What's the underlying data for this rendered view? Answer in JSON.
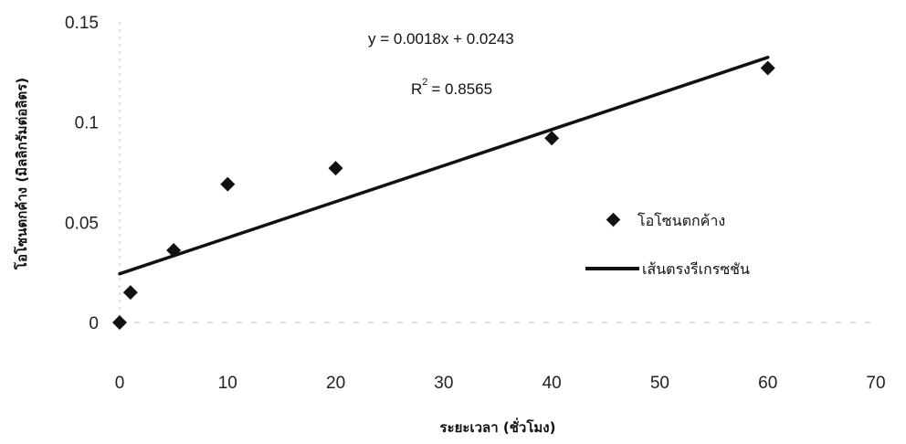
{
  "chart_data": {
    "type": "scatter",
    "xlabel": "ระยะเวลา (ชั่วโมง)",
    "ylabel": "โอโซนตกค้าง (มิลลิกรัมต่อลิตร)",
    "xlim": [
      0,
      70
    ],
    "ylim": [
      0,
      0.15
    ],
    "xticks": [
      "0",
      "10",
      "20",
      "30",
      "40",
      "50",
      "60",
      "70"
    ],
    "yticks": [
      "0",
      "0.05",
      "0.1",
      "0.15"
    ],
    "grid": false,
    "legend_position": "right",
    "series": [
      {
        "name": "โอโซนตกค้าง",
        "marker": "diamond",
        "color": "#111111",
        "x": [
          0,
          1,
          5,
          10,
          20,
          40,
          60
        ],
        "y": [
          0,
          0.015,
          0.036,
          0.069,
          0.077,
          0.092,
          0.127
        ]
      },
      {
        "name": "เส้นตรงรีเกรซชัน",
        "type": "line",
        "color": "#111111",
        "slope": 0.0018,
        "intercept": 0.0243,
        "x": [
          0,
          60
        ],
        "y": [
          0.0243,
          0.1323
        ]
      }
    ],
    "annotations": {
      "equation": "y = 0.0018x + 0.0243",
      "r2_label": "R",
      "r2_exponent": "2",
      "r2_value": "= 0.8565"
    }
  }
}
